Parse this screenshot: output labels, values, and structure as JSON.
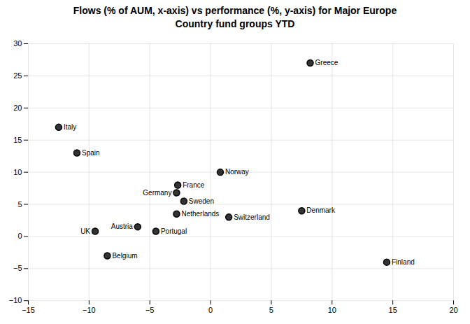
{
  "chart_data": {
    "type": "scatter",
    "title": "Flows (% of AUM, x-axis) vs performance (%, y-axis) for Major Europe\nCountry fund groups YTD",
    "labels": [
      "Italy",
      "Spain",
      "Greece",
      "Norway",
      "France",
      "Germany",
      "Sweden",
      "Netherlands",
      "Austria",
      "UK",
      "Portugal",
      "Switzerland",
      "Denmark",
      "Belgium",
      "Finland"
    ],
    "x": [
      -12.5,
      -11.0,
      8.2,
      0.8,
      -2.7,
      -2.8,
      -2.2,
      -2.8,
      -6.0,
      -9.5,
      -4.5,
      1.5,
      7.5,
      -8.5,
      14.5
    ],
    "values": [
      17.0,
      13.0,
      27.0,
      10.0,
      8.0,
      6.8,
      5.5,
      3.5,
      1.5,
      0.8,
      0.8,
      3.0,
      4.0,
      -3.0,
      -4.0
    ],
    "xlim": [
      -15,
      20
    ],
    "ylim": [
      -10,
      30
    ],
    "xticks": [
      -15,
      -10,
      -5,
      0,
      5,
      10,
      15,
      20
    ],
    "yticks": [
      -10,
      -5,
      0,
      5,
      10,
      15,
      20,
      25,
      30
    ],
    "grid": true
  }
}
